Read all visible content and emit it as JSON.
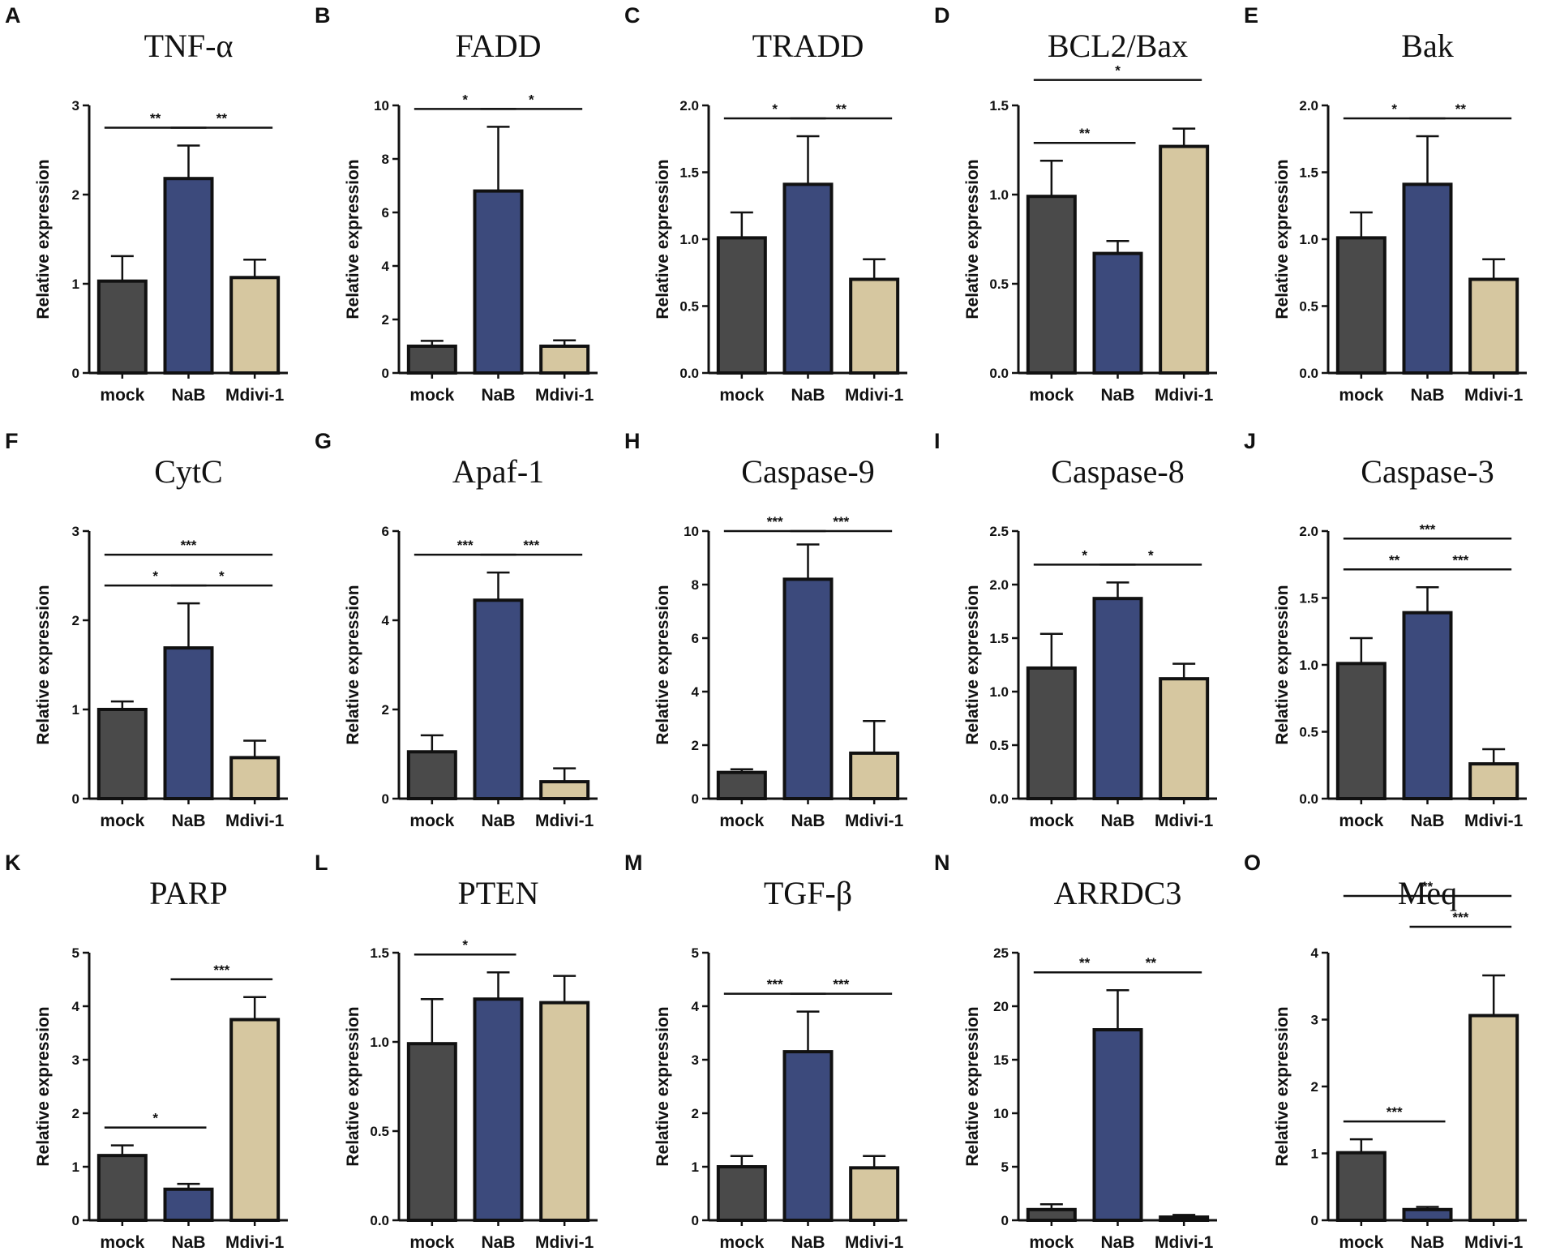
{
  "colors": {
    "mock": "#4a4a4a",
    "NaB": "#3c4a7c",
    "Mdivi-1": "#d6c7a0",
    "stroke": "#111111"
  },
  "chart_data": [
    {
      "type": "bar",
      "letter": "A",
      "title": "TNF-α",
      "ylabel": "Relative expression",
      "categories": [
        "mock",
        "NaB",
        "Mdivi-1"
      ],
      "values": [
        1.03,
        2.18,
        1.07
      ],
      "errors": [
        0.28,
        0.37,
        0.2
      ],
      "ylim": [
        0,
        3
      ],
      "yticks": [
        "0",
        "1",
        "2",
        "3"
      ],
      "significance": [
        {
          "from": 0,
          "to": 1,
          "label": "**",
          "level": 0
        },
        {
          "from": 1,
          "to": 2,
          "label": "**",
          "level": 0
        }
      ]
    },
    {
      "type": "bar",
      "letter": "B",
      "title": "FADD",
      "ylabel": "Relative expression",
      "categories": [
        "mock",
        "NaB",
        "Mdivi-1"
      ],
      "values": [
        1.0,
        6.8,
        1.0
      ],
      "errors": [
        0.2,
        2.4,
        0.22
      ],
      "ylim": [
        0,
        10
      ],
      "yticks": [
        "0",
        "2",
        "4",
        "6",
        "8",
        "10"
      ],
      "significance": [
        {
          "from": 0,
          "to": 1,
          "label": "*",
          "level": 0
        },
        {
          "from": 1,
          "to": 2,
          "label": "*",
          "level": 0
        }
      ]
    },
    {
      "type": "bar",
      "letter": "C",
      "title": "TRADD",
      "ylabel": "Relative expression",
      "categories": [
        "mock",
        "NaB",
        "Mdivi-1"
      ],
      "values": [
        1.01,
        1.41,
        0.7
      ],
      "errors": [
        0.19,
        0.36,
        0.15
      ],
      "ylim": [
        0,
        2
      ],
      "yticks": [
        "0.0",
        "0.5",
        "1.0",
        "1.5",
        "2.0"
      ],
      "significance": [
        {
          "from": 0,
          "to": 1,
          "label": "*",
          "level": 0
        },
        {
          "from": 1,
          "to": 2,
          "label": "**",
          "level": 0
        }
      ]
    },
    {
      "type": "bar",
      "letter": "D",
      "title": "BCL2/Bax",
      "ylabel": "Relative expression",
      "categories": [
        "mock",
        "NaB",
        "Mdivi-1"
      ],
      "values": [
        0.99,
        0.67,
        1.27
      ],
      "errors": [
        0.2,
        0.07,
        0.1
      ],
      "ylim": [
        0,
        1.5
      ],
      "yticks": [
        "0.0",
        "0.5",
        "1.0",
        "1.5"
      ],
      "significance": [
        {
          "from": 0,
          "to": 1,
          "label": "**",
          "level": 0
        },
        {
          "from": 0,
          "to": 2,
          "label": "*",
          "level": 1
        }
      ]
    },
    {
      "type": "bar",
      "letter": "E",
      "title": "Bak",
      "ylabel": "Relative expression",
      "categories": [
        "mock",
        "NaB",
        "Mdivi-1"
      ],
      "values": [
        1.01,
        1.41,
        0.7
      ],
      "errors": [
        0.19,
        0.36,
        0.15
      ],
      "ylim": [
        0,
        2
      ],
      "yticks": [
        "0.0",
        "0.5",
        "1.0",
        "1.5",
        "2.0"
      ],
      "significance": [
        {
          "from": 0,
          "to": 1,
          "label": "*",
          "level": 0
        },
        {
          "from": 1,
          "to": 2,
          "label": "**",
          "level": 0
        }
      ]
    },
    {
      "type": "bar",
      "letter": "F",
      "title": "CytC",
      "ylabel": "Relative expression",
      "categories": [
        "mock",
        "NaB",
        "Mdivi-1"
      ],
      "values": [
        1.0,
        1.69,
        0.46
      ],
      "errors": [
        0.09,
        0.5,
        0.19
      ],
      "ylim": [
        0,
        3
      ],
      "yticks": [
        "0",
        "1",
        "2",
        "3"
      ],
      "significance": [
        {
          "from": 0,
          "to": 1,
          "label": "*",
          "level": 0
        },
        {
          "from": 1,
          "to": 2,
          "label": "*",
          "level": 0
        },
        {
          "from": 0,
          "to": 2,
          "label": "***",
          "level": 1
        }
      ]
    },
    {
      "type": "bar",
      "letter": "G",
      "title": "Apaf-1",
      "ylabel": "Relative expression",
      "categories": [
        "mock",
        "NaB",
        "Mdivi-1"
      ],
      "values": [
        1.05,
        4.45,
        0.38
      ],
      "errors": [
        0.37,
        0.62,
        0.3
      ],
      "ylim": [
        0,
        6
      ],
      "yticks": [
        "0",
        "2",
        "4",
        "6"
      ],
      "significance": [
        {
          "from": 0,
          "to": 1,
          "label": "***",
          "level": 0
        },
        {
          "from": 1,
          "to": 2,
          "label": "***",
          "level": 0
        }
      ]
    },
    {
      "type": "bar",
      "letter": "H",
      "title": "Caspase-9",
      "ylabel": "Relative expression",
      "categories": [
        "mock",
        "NaB",
        "Mdivi-1"
      ],
      "values": [
        0.98,
        8.2,
        1.7
      ],
      "errors": [
        0.12,
        1.3,
        1.2
      ],
      "ylim": [
        0,
        10
      ],
      "yticks": [
        "0",
        "2",
        "4",
        "6",
        "8",
        "10"
      ],
      "significance": [
        {
          "from": 0,
          "to": 1,
          "label": "***",
          "level": 0
        },
        {
          "from": 1,
          "to": 2,
          "label": "***",
          "level": 0
        }
      ]
    },
    {
      "type": "bar",
      "letter": "I",
      "title": "Caspase-8",
      "ylabel": "Relative expression",
      "categories": [
        "mock",
        "NaB",
        "Mdivi-1"
      ],
      "values": [
        1.22,
        1.87,
        1.12
      ],
      "errors": [
        0.32,
        0.15,
        0.14
      ],
      "ylim": [
        0,
        2.5
      ],
      "yticks": [
        "0.0",
        "0.5",
        "1.0",
        "1.5",
        "2.0",
        "2.5"
      ],
      "significance": [
        {
          "from": 0,
          "to": 1,
          "label": "*",
          "level": 0
        },
        {
          "from": 1,
          "to": 2,
          "label": "*",
          "level": 0
        }
      ]
    },
    {
      "type": "bar",
      "letter": "J",
      "title": "Caspase-3",
      "ylabel": "Relative expression",
      "categories": [
        "mock",
        "NaB",
        "Mdivi-1"
      ],
      "values": [
        1.01,
        1.39,
        0.26
      ],
      "errors": [
        0.19,
        0.19,
        0.11
      ],
      "ylim": [
        0,
        2
      ],
      "yticks": [
        "0.0",
        "0.5",
        "1.0",
        "1.5",
        "2.0"
      ],
      "significance": [
        {
          "from": 0,
          "to": 1,
          "label": "**",
          "level": 0
        },
        {
          "from": 1,
          "to": 2,
          "label": "***",
          "level": 0
        },
        {
          "from": 0,
          "to": 2,
          "label": "***",
          "level": 1
        }
      ]
    },
    {
      "type": "bar",
      "letter": "K",
      "title": "PARP",
      "ylabel": "Relative expression",
      "categories": [
        "mock",
        "NaB",
        "Mdivi-1"
      ],
      "values": [
        1.21,
        0.58,
        3.75
      ],
      "errors": [
        0.19,
        0.1,
        0.42
      ],
      "ylim": [
        0,
        5
      ],
      "yticks": [
        "0",
        "1",
        "2",
        "3",
        "4",
        "5"
      ],
      "significance": [
        {
          "from": 0,
          "to": 1,
          "label": "*",
          "level": 0
        },
        {
          "from": 1,
          "to": 2,
          "label": "***",
          "level": 0
        }
      ]
    },
    {
      "type": "bar",
      "letter": "L",
      "title": "PTEN",
      "ylabel": "Relative expression",
      "categories": [
        "mock",
        "NaB",
        "Mdivi-1"
      ],
      "values": [
        0.99,
        1.24,
        1.22
      ],
      "errors": [
        0.25,
        0.15,
        0.15
      ],
      "ylim": [
        0,
        1.5
      ],
      "yticks": [
        "0.0",
        "0.5",
        "1.0",
        "1.5"
      ],
      "significance": [
        {
          "from": 0,
          "to": 1,
          "label": "*",
          "level": 0
        }
      ]
    },
    {
      "type": "bar",
      "letter": "M",
      "title": "TGF-β",
      "ylabel": "Relative expression",
      "categories": [
        "mock",
        "NaB",
        "Mdivi-1"
      ],
      "values": [
        1.0,
        3.15,
        0.98
      ],
      "errors": [
        0.2,
        0.75,
        0.22
      ],
      "ylim": [
        0,
        5
      ],
      "yticks": [
        "0",
        "1",
        "2",
        "3",
        "4",
        "5"
      ],
      "significance": [
        {
          "from": 0,
          "to": 1,
          "label": "***",
          "level": 0
        },
        {
          "from": 1,
          "to": 2,
          "label": "***",
          "level": 0
        }
      ]
    },
    {
      "type": "bar",
      "letter": "N",
      "title": "ARRDC3",
      "ylabel": "Relative expression",
      "categories": [
        "mock",
        "NaB",
        "Mdivi-1"
      ],
      "values": [
        1.0,
        17.8,
        0.3
      ],
      "errors": [
        0.5,
        3.7,
        0.2
      ],
      "ylim": [
        0,
        25
      ],
      "yticks": [
        "0",
        "5",
        "10",
        "15",
        "20",
        "25"
      ],
      "significance": [
        {
          "from": 0,
          "to": 1,
          "label": "**",
          "level": 0
        },
        {
          "from": 1,
          "to": 2,
          "label": "**",
          "level": 0
        }
      ]
    },
    {
      "type": "bar",
      "letter": "O",
      "title": "Meq",
      "ylabel": "Relative expression",
      "categories": [
        "mock",
        "NaB",
        "Mdivi-1"
      ],
      "values": [
        1.01,
        0.16,
        3.06
      ],
      "errors": [
        0.2,
        0.04,
        0.6
      ],
      "ylim": [
        0,
        4
      ],
      "yticks": [
        "0",
        "1",
        "2",
        "3",
        "4"
      ],
      "significance": [
        {
          "from": 0,
          "to": 1,
          "label": "***",
          "level": 0
        },
        {
          "from": 1,
          "to": 2,
          "label": "***",
          "level": 1
        },
        {
          "from": 0,
          "to": 2,
          "label": "**",
          "level": 2
        }
      ]
    }
  ]
}
